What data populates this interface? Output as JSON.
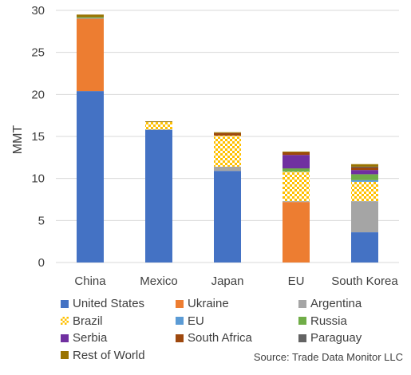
{
  "chart_data": {
    "type": "bar",
    "stacked": true,
    "title": "",
    "xlabel": "",
    "ylabel": "MMT",
    "ylim": [
      0,
      30
    ],
    "yticks": [
      0,
      5,
      10,
      15,
      20,
      25,
      30
    ],
    "grid": true,
    "legend_position": "bottom",
    "categories": [
      "China",
      "Mexico",
      "Japan",
      "EU",
      "South Korea"
    ],
    "series": [
      {
        "name": "United States",
        "color": "#4472C4",
        "pattern": "solid",
        "values": [
          20.4,
          15.8,
          10.9,
          0,
          3.6
        ]
      },
      {
        "name": "Ukraine",
        "color": "#ED7D31",
        "pattern": "solid",
        "values": [
          8.6,
          0,
          0,
          7.2,
          0
        ]
      },
      {
        "name": "Argentina",
        "color": "#A5A5A5",
        "pattern": "solid",
        "values": [
          0.1,
          0,
          0.5,
          0.1,
          3.7
        ]
      },
      {
        "name": "Brazil",
        "color": "#FFC000",
        "pattern": "checker",
        "values": [
          0,
          0.9,
          3.7,
          3.5,
          2.3
        ]
      },
      {
        "name": "EU",
        "color": "#5B9BD5",
        "pattern": "solid",
        "values": [
          0,
          0,
          0,
          0,
          0.2
        ]
      },
      {
        "name": "Russia",
        "color": "#70AD47",
        "pattern": "solid",
        "values": [
          0.1,
          0,
          0,
          0.4,
          0.7
        ]
      },
      {
        "name": "Serbia",
        "color": "#7030A0",
        "pattern": "solid",
        "values": [
          0,
          0,
          0,
          1.6,
          0.5
        ]
      },
      {
        "name": "South Africa",
        "color": "#9E480E",
        "pattern": "solid",
        "values": [
          0,
          0,
          0.3,
          0.3,
          0.3
        ]
      },
      {
        "name": "Paraguay",
        "color": "#636363",
        "pattern": "solid",
        "values": [
          0,
          0,
          0,
          0,
          0.1
        ]
      },
      {
        "name": "Rest of World",
        "color": "#997300",
        "pattern": "solid",
        "values": [
          0.3,
          0.1,
          0.1,
          0.1,
          0.3
        ]
      }
    ]
  },
  "source_text": "Source: Trade Data Monitor LLC"
}
